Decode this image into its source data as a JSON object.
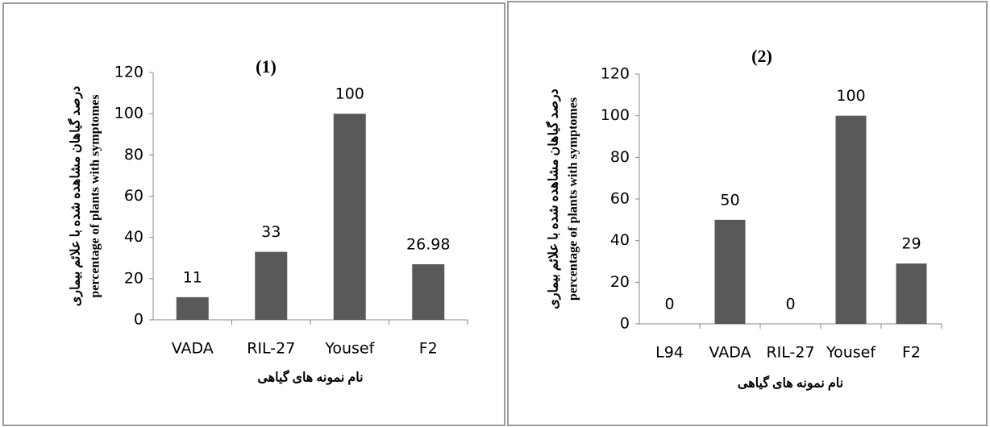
{
  "chart_data": [
    {
      "type": "bar",
      "title": "(1)",
      "ylabel": [
        "درصد گیاهان مشاهده شده با علائم بیماری",
        "percentage of plants with symptomes"
      ],
      "xlabel": "نام نمونه های گیاهی",
      "categories": [
        "VADA",
        "RIL-27",
        "Yousef",
        "F2"
      ],
      "values": [
        11,
        33,
        100,
        26.98
      ],
      "color": "#595959",
      "ylim": [
        0,
        120
      ],
      "yticks": [
        0,
        20,
        40,
        60,
        80,
        100,
        120
      ]
    },
    {
      "type": "bar",
      "title": "(2)",
      "ylabel": [
        "درصد گیاهان مشاهده شده با علائم بیماری",
        "percentage of plants with symptomes"
      ],
      "xlabel": "نام نمونه های گیاهی",
      "categories": [
        "L94",
        "VADA",
        "RIL-27",
        "Yousef",
        "F2"
      ],
      "values": [
        0,
        50,
        0,
        100,
        29
      ],
      "color": "#595959",
      "ylim": [
        0,
        120
      ],
      "yticks": [
        0,
        20,
        40,
        60,
        80,
        100,
        120
      ]
    }
  ]
}
